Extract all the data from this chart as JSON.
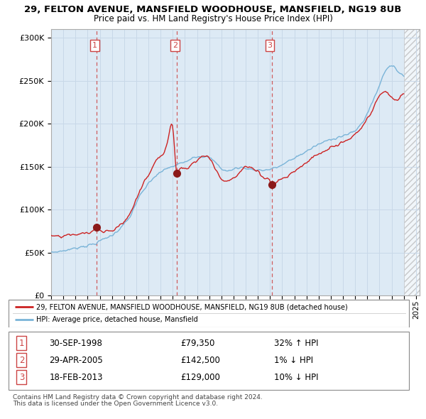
{
  "title1": "29, FELTON AVENUE, MANSFIELD WOODHOUSE, MANSFIELD, NG19 8UB",
  "title2": "Price paid vs. HM Land Registry's House Price Index (HPI)",
  "ylim": [
    0,
    310000
  ],
  "yticks": [
    0,
    50000,
    100000,
    150000,
    200000,
    250000,
    300000
  ],
  "ytick_labels": [
    "£0",
    "£50K",
    "£100K",
    "£150K",
    "£200K",
    "£250K",
    "£300K"
  ],
  "sale_dates_decimal": [
    1998.75,
    2005.33,
    2013.13
  ],
  "sale_prices": [
    79350,
    142500,
    129000
  ],
  "sale_labels": [
    "1",
    "2",
    "3"
  ],
  "hpi_color": "#7ab4d8",
  "price_color": "#cc2222",
  "vline_color": "#cc4444",
  "grid_color": "#c8d8e8",
  "chart_bg": "#ddeaf5",
  "hatch_bg": "#f0f0f0",
  "legend_price_label": "29, FELTON AVENUE, MANSFIELD WOODHOUSE, MANSFIELD, NG19 8UB (detached house)",
  "legend_hpi_label": "HPI: Average price, detached house, Mansfield",
  "table_rows": [
    {
      "num": "1",
      "date": "30-SEP-1998",
      "price": "£79,350",
      "hpi": "32% ↑ HPI"
    },
    {
      "num": "2",
      "date": "29-APR-2005",
      "price": "£142,500",
      "hpi": "1% ↓ HPI"
    },
    {
      "num": "3",
      "date": "18-FEB-2013",
      "price": "£129,000",
      "hpi": "10% ↓ HPI"
    }
  ],
  "footnote1": "Contains HM Land Registry data © Crown copyright and database right 2024.",
  "footnote2": "This data is licensed under the Open Government Licence v3.0."
}
